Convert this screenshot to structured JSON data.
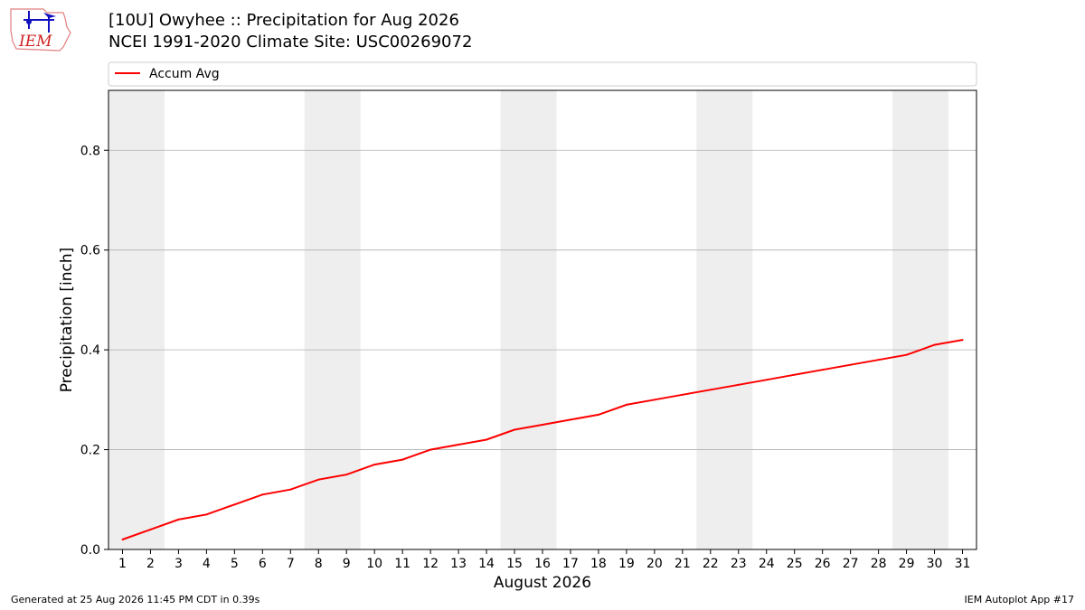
{
  "header": {
    "title": "[10U] Owyhee :: Precipitation for Aug 2026",
    "subtitle": "NCEI 1991-2020 Climate Site: USC00269072",
    "logo_text": "IEM"
  },
  "footer": {
    "generated": "Generated at 25 Aug 2026 11:45 PM CDT in 0.39s",
    "app": "IEM Autoplot App #17"
  },
  "chart_data": {
    "type": "line",
    "xlabel": "August 2026",
    "ylabel": "Precipitation [inch]",
    "xlim": [
      0.5,
      31.5
    ],
    "ylim": [
      0,
      0.92
    ],
    "yticks": [
      0.0,
      0.2,
      0.4,
      0.6,
      0.8
    ],
    "x": [
      1,
      2,
      3,
      4,
      5,
      6,
      7,
      8,
      9,
      10,
      11,
      12,
      13,
      14,
      15,
      16,
      17,
      18,
      19,
      20,
      21,
      22,
      23,
      24,
      25,
      26,
      27,
      28,
      29,
      30,
      31
    ],
    "series": [
      {
        "name": "Accum Avg",
        "color": "#ff0000",
        "values": [
          0.02,
          0.04,
          0.06,
          0.07,
          0.09,
          0.11,
          0.12,
          0.14,
          0.15,
          0.17,
          0.18,
          0.2,
          0.21,
          0.22,
          0.24,
          0.25,
          0.26,
          0.27,
          0.29,
          0.3,
          0.31,
          0.32,
          0.33,
          0.34,
          0.35,
          0.36,
          0.37,
          0.38,
          0.39,
          0.41,
          0.42
        ]
      }
    ],
    "weekend_shading": [
      [
        1,
        2
      ],
      [
        8,
        9
      ],
      [
        15,
        16
      ],
      [
        22,
        23
      ],
      [
        29,
        30
      ]
    ],
    "shade_color": "#eeeeee",
    "grid": "y",
    "legend": "top-left"
  }
}
